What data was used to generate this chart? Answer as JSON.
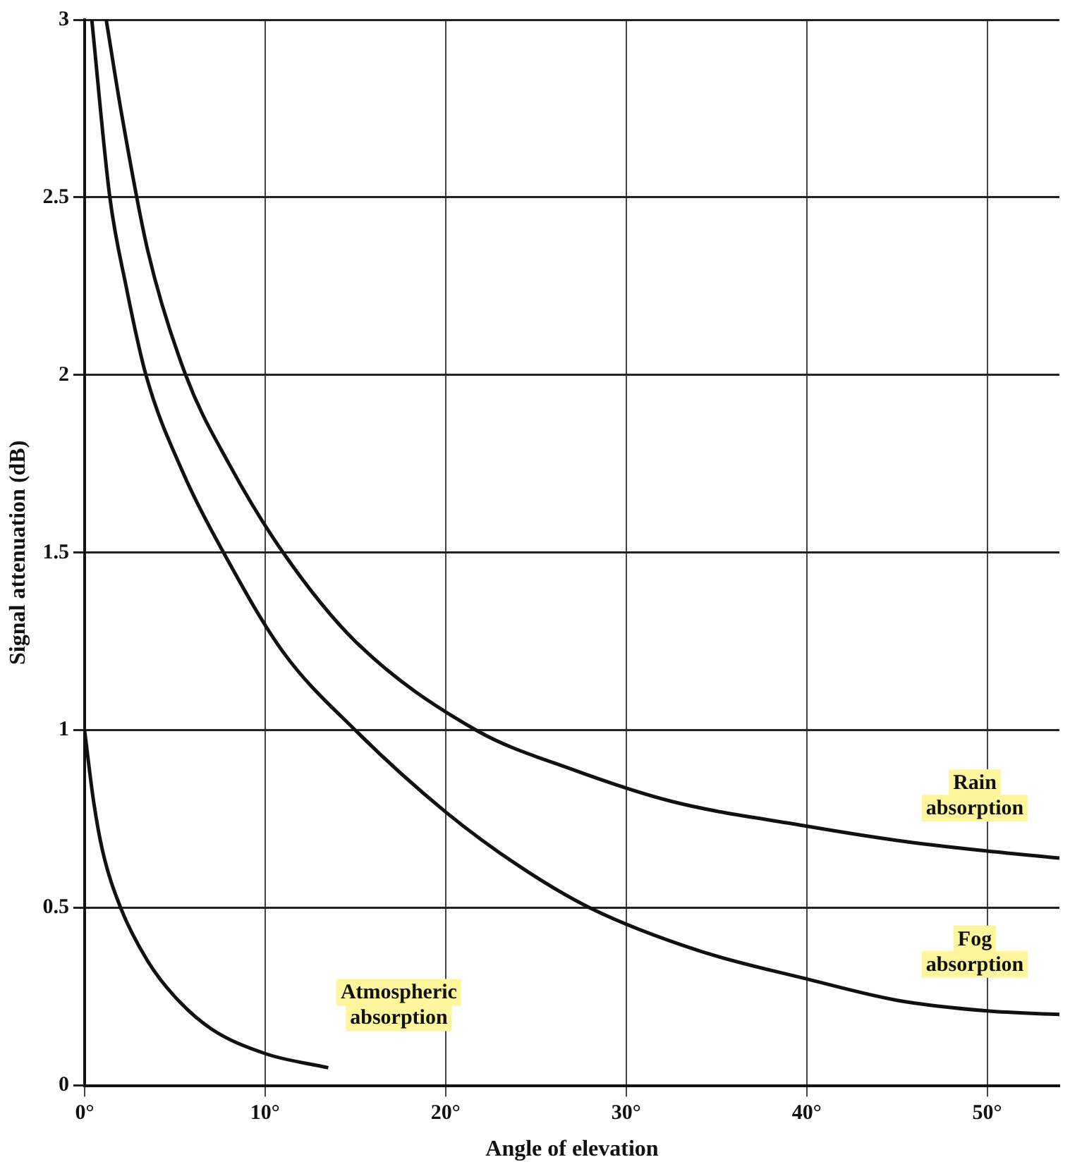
{
  "chart_data": {
    "type": "line",
    "xlabel": "Angle of elevation",
    "ylabel": "Signal attenuation (dB)",
    "xlim": [
      0,
      54
    ],
    "xticks": [
      {
        "value": 0,
        "label": "0°"
      },
      {
        "value": 10,
        "label": "10°"
      },
      {
        "value": 20,
        "label": "20°"
      },
      {
        "value": 30,
        "label": "30°"
      },
      {
        "value": 40,
        "label": "40°"
      },
      {
        "value": 50,
        "label": "50°"
      }
    ],
    "ylim": [
      0,
      3
    ],
    "yticks": [
      0,
      0.5,
      1,
      1.5,
      2,
      2.5,
      3
    ],
    "grid": true,
    "legend": false,
    "marker": "none",
    "line_style": "solid",
    "series": [
      {
        "name": "Rain absorption",
        "color": "#111111",
        "x": [
          1.2,
          2,
          3.5,
          5.6,
          8,
          11,
          15,
          21.7,
          27,
          32.5,
          40,
          45,
          50,
          54
        ],
        "values": [
          3,
          2.75,
          2.35,
          2.0,
          1.75,
          1.5,
          1.25,
          1.0,
          0.89,
          0.8,
          0.73,
          0.69,
          0.66,
          0.64
        ]
      },
      {
        "name": "Fog absorption",
        "color": "#111111",
        "x": [
          0.4,
          1.4,
          2.3,
          3.4,
          5.5,
          7.7,
          11,
          15,
          20,
          24,
          28,
          34,
          40,
          45,
          50,
          54
        ],
        "values": [
          3,
          2.5,
          2.25,
          2.0,
          1.72,
          1.5,
          1.22,
          1.0,
          0.77,
          0.62,
          0.5,
          0.38,
          0.3,
          0.24,
          0.21,
          0.2
        ]
      },
      {
        "name": "Atmospheric absorption",
        "color": "#111111",
        "x": [
          0,
          0.5,
          1,
          2,
          3.5,
          5,
          7,
          10,
          13.5
        ],
        "values": [
          1.0,
          0.8,
          0.66,
          0.5,
          0.35,
          0.25,
          0.16,
          0.09,
          0.05
        ]
      }
    ]
  }
}
